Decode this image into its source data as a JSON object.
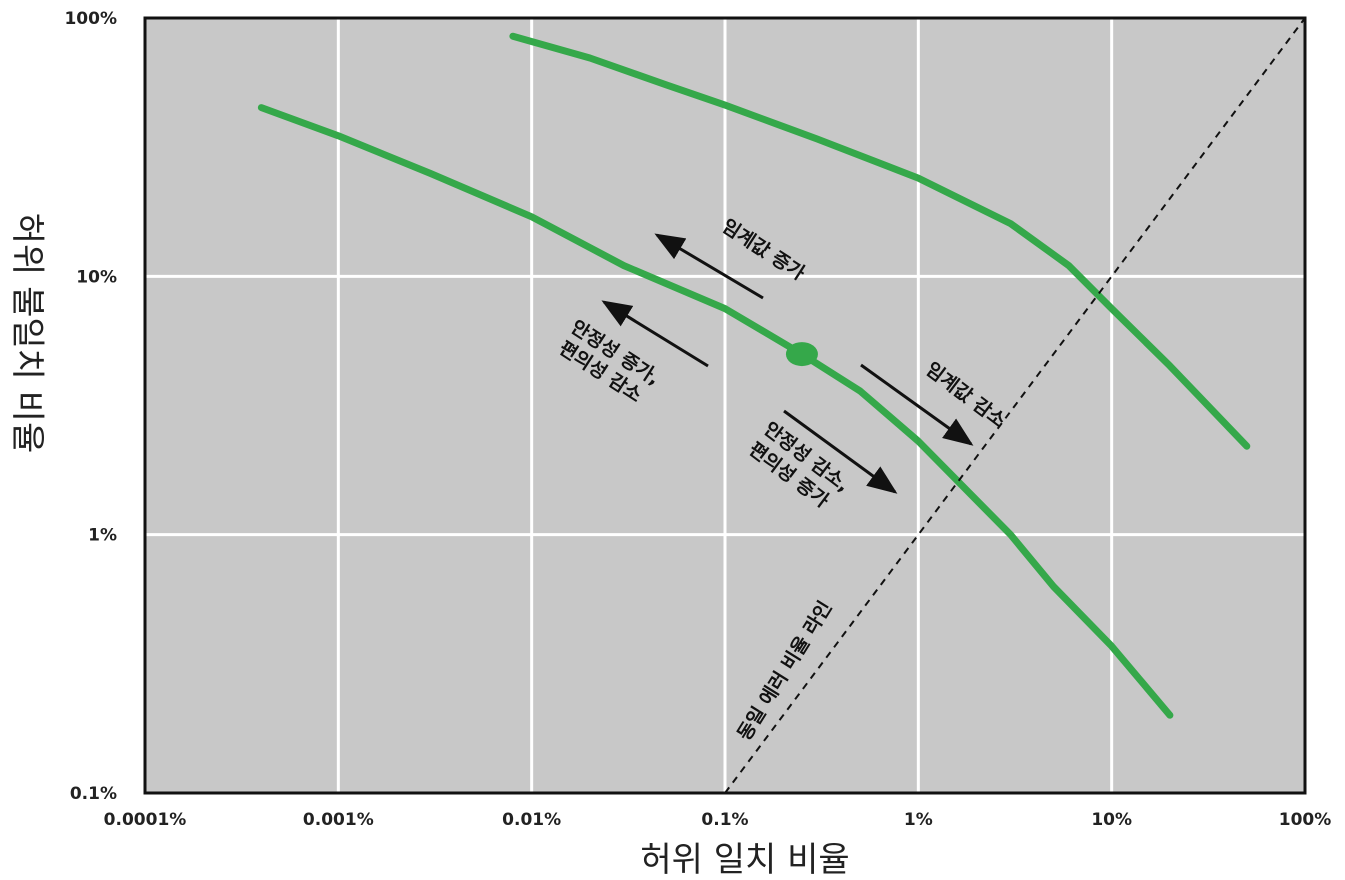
{
  "chart_data": {
    "type": "line",
    "title": "",
    "xlabel": "허위 일치 비율",
    "ylabel": "허위 불일치 비율",
    "x_scale": "log",
    "y_scale": "log",
    "xlim": [
      0.0001,
      100
    ],
    "ylim": [
      0.1,
      100
    ],
    "x_ticks": [
      0.0001,
      0.001,
      0.01,
      0.1,
      1,
      10,
      100
    ],
    "x_tick_labels": [
      "0.0001%",
      "0.001%",
      "0.01%",
      "0.1%",
      "1%",
      "10%",
      "100%"
    ],
    "y_ticks": [
      0.1,
      1,
      10,
      100
    ],
    "y_tick_labels": [
      "0.1%",
      "1%",
      "10%",
      "100%"
    ],
    "grid": true,
    "colors": {
      "plot_background": "#c8c8c8",
      "grid": "#ffffff",
      "curve": "#35a84a",
      "text": "#111111"
    },
    "series": [
      {
        "x": [
          0.008,
          0.02,
          0.05,
          0.1,
          0.3,
          1,
          3,
          6,
          10,
          20,
          50
        ],
        "y": [
          85,
          70,
          55,
          46,
          34,
          24,
          16,
          11,
          7.5,
          4.5,
          2.2
        ]
      },
      {
        "x": [
          0.0004,
          0.001,
          0.003,
          0.01,
          0.03,
          0.1,
          0.25,
          0.5,
          1,
          3,
          5,
          10,
          20
        ],
        "y": [
          45,
          35,
          25,
          17,
          11,
          7.5,
          5,
          3.6,
          2.3,
          1.0,
          0.63,
          0.37,
          0.2
        ]
      },
      {
        "x": [
          0.1,
          100
        ],
        "y": [
          0.1,
          100
        ],
        "style": "dashed"
      }
    ],
    "operating_point": {
      "x": 0.25,
      "y": 5
    },
    "annotations": [
      {
        "id": "thr_up",
        "text": "임계값 증가"
      },
      {
        "id": "sec_up_1",
        "text": "안정성 증가,"
      },
      {
        "id": "sec_up_2",
        "text": "편의성 감소"
      },
      {
        "id": "thr_down",
        "text": "임계값 감소"
      },
      {
        "id": "sec_down_1",
        "text": "안정성 감소,"
      },
      {
        "id": "sec_down_2",
        "text": "편의성 증가"
      },
      {
        "id": "eer_line",
        "text": "동일 에러 비율 라인"
      }
    ]
  }
}
